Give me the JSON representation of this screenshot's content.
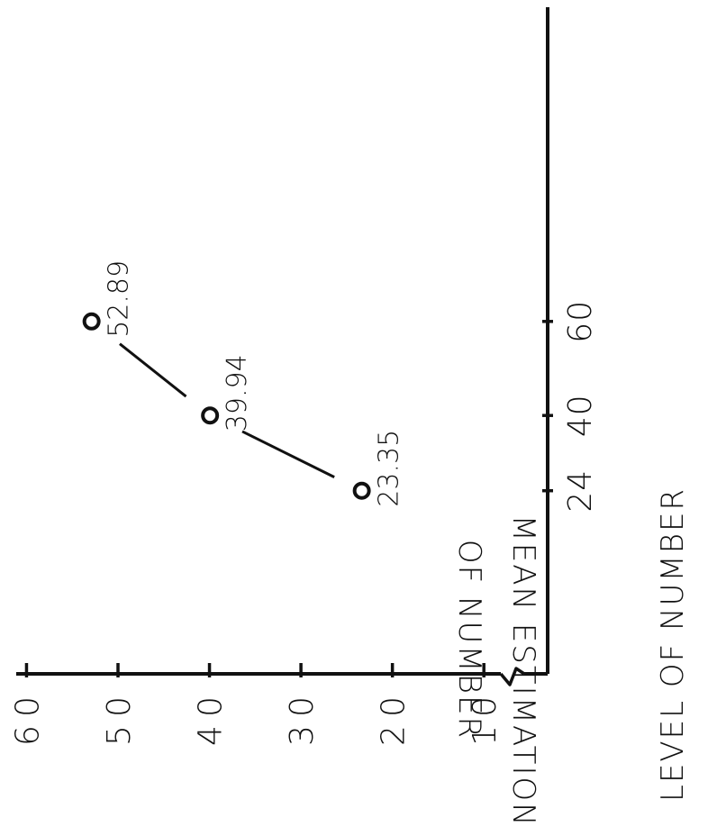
{
  "chart_data": {
    "type": "line",
    "orientation": "rotated 90 degrees counter-clockwise",
    "xlabel": "LEVEL OF NUMBER",
    "ylabel_lines": [
      "MEAN ESTIMATION",
      "OF NUMBER"
    ],
    "x_ticks": [
      "24",
      "40",
      "60"
    ],
    "y_ticks": [
      "10",
      "20",
      "30",
      "40",
      "50",
      "60"
    ],
    "xlim": [
      0,
      80
    ],
    "ylim": [
      5,
      60
    ],
    "y_axis_break": true,
    "series": [
      {
        "x": [
          24,
          40,
          60
        ],
        "y": [
          23.35,
          39.94,
          52.89
        ],
        "labels": [
          "23.35",
          "39.94",
          "52.89"
        ],
        "marker": "open-circle",
        "line_style": "connecting segments with gaps at markers"
      }
    ],
    "grid": false,
    "color": "#111111"
  }
}
